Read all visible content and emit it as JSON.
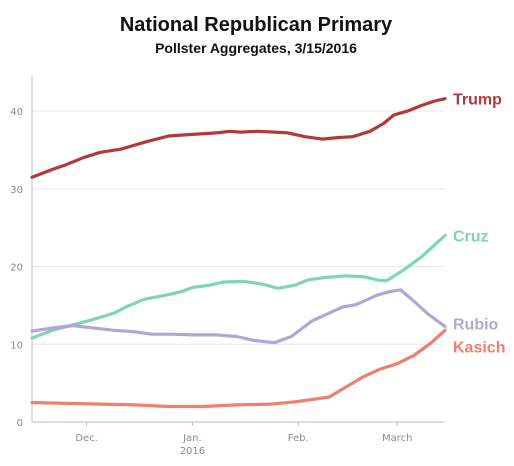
{
  "chart_data": {
    "type": "line",
    "title": "National Republican Primary",
    "subtitle": "Pollster Aggregates, 3/15/2016",
    "xlabel": "",
    "ylabel": "",
    "xlim": [
      "2015-11-15",
      "2016-03-15"
    ],
    "ylim": [
      0,
      44
    ],
    "yticks": [
      0,
      10,
      20,
      30,
      40
    ],
    "xticks": [
      {
        "date": "2015-12-01",
        "label": "Dec."
      },
      {
        "date": "2016-01-01",
        "label": "Jan.",
        "sublabel": "2016"
      },
      {
        "date": "2016-02-01",
        "label": "Feb."
      },
      {
        "date": "2016-03-01",
        "label": "March"
      }
    ],
    "grid": true,
    "legend": "direct labels at right end of lines",
    "series": [
      {
        "name": "Trump",
        "color": "#b03a3a",
        "points": [
          [
            "2015-11-15",
            31.5
          ],
          [
            "2015-11-21",
            32.5
          ],
          [
            "2015-11-25",
            33.1
          ],
          [
            "2015-11-30",
            34.0
          ],
          [
            "2015-12-05",
            34.7
          ],
          [
            "2015-12-11",
            35.1
          ],
          [
            "2015-12-18",
            36.0
          ],
          [
            "2015-12-25",
            36.8
          ],
          [
            "2016-01-01",
            37.0
          ],
          [
            "2016-01-08",
            37.2
          ],
          [
            "2016-01-12",
            37.4
          ],
          [
            "2016-01-15",
            37.3
          ],
          [
            "2016-01-20",
            37.4
          ],
          [
            "2016-01-25",
            37.3
          ],
          [
            "2016-01-29",
            37.2
          ],
          [
            "2016-02-03",
            36.7
          ],
          [
            "2016-02-08",
            36.4
          ],
          [
            "2016-02-13",
            36.6
          ],
          [
            "2016-02-17",
            36.7
          ],
          [
            "2016-02-22",
            37.4
          ],
          [
            "2016-02-26",
            38.4
          ],
          [
            "2016-02-29",
            39.5
          ],
          [
            "2016-03-04",
            40.0
          ],
          [
            "2016-03-08",
            40.7
          ],
          [
            "2016-03-12",
            41.3
          ],
          [
            "2016-03-15",
            41.6
          ]
        ]
      },
      {
        "name": "Cruz",
        "color": "#7fd3bc",
        "points": [
          [
            "2015-11-15",
            10.8
          ],
          [
            "2015-11-21",
            11.8
          ],
          [
            "2015-11-27",
            12.5
          ],
          [
            "2015-12-03",
            13.2
          ],
          [
            "2015-12-09",
            14.0
          ],
          [
            "2015-12-13",
            14.9
          ],
          [
            "2015-12-18",
            15.8
          ],
          [
            "2015-12-24",
            16.3
          ],
          [
            "2015-12-29",
            16.8
          ],
          [
            "2016-01-01",
            17.3
          ],
          [
            "2016-01-06",
            17.6
          ],
          [
            "2016-01-10",
            18.0
          ],
          [
            "2016-01-16",
            18.1
          ],
          [
            "2016-01-22",
            17.7
          ],
          [
            "2016-01-26",
            17.2
          ],
          [
            "2016-01-31",
            17.6
          ],
          [
            "2016-02-04",
            18.3
          ],
          [
            "2016-02-09",
            18.6
          ],
          [
            "2016-02-15",
            18.8
          ],
          [
            "2016-02-20",
            18.7
          ],
          [
            "2016-02-25",
            18.2
          ],
          [
            "2016-02-27",
            18.2
          ],
          [
            "2016-03-03",
            19.6
          ],
          [
            "2016-03-08",
            21.2
          ],
          [
            "2016-03-15",
            24.0
          ]
        ]
      },
      {
        "name": "Rubio",
        "color": "#b3a6d6",
        "points": [
          [
            "2015-11-15",
            11.7
          ],
          [
            "2015-11-21",
            12.1
          ],
          [
            "2015-11-27",
            12.4
          ],
          [
            "2015-12-03",
            12.1
          ],
          [
            "2015-12-09",
            11.8
          ],
          [
            "2015-12-15",
            11.6
          ],
          [
            "2015-12-20",
            11.3
          ],
          [
            "2015-12-26",
            11.3
          ],
          [
            "2016-01-01",
            11.2
          ],
          [
            "2016-01-08",
            11.2
          ],
          [
            "2016-01-14",
            11.0
          ],
          [
            "2016-01-19",
            10.5
          ],
          [
            "2016-01-25",
            10.2
          ],
          [
            "2016-01-30",
            11.0
          ],
          [
            "2016-02-05",
            13.0
          ],
          [
            "2016-02-10",
            14.0
          ],
          [
            "2016-02-14",
            14.8
          ],
          [
            "2016-02-18",
            15.1
          ],
          [
            "2016-02-24",
            16.3
          ],
          [
            "2016-02-28",
            16.8
          ],
          [
            "2016-03-02",
            17.0
          ],
          [
            "2016-03-06",
            15.5
          ],
          [
            "2016-03-10",
            13.9
          ],
          [
            "2016-03-15",
            12.3
          ]
        ]
      },
      {
        "name": "Kasich",
        "color": "#ef7f6e",
        "points": [
          [
            "2015-11-15",
            2.5
          ],
          [
            "2015-11-25",
            2.4
          ],
          [
            "2015-12-05",
            2.3
          ],
          [
            "2015-12-15",
            2.2
          ],
          [
            "2015-12-25",
            2.0
          ],
          [
            "2016-01-04",
            2.0
          ],
          [
            "2016-01-14",
            2.2
          ],
          [
            "2016-01-24",
            2.3
          ],
          [
            "2016-01-31",
            2.6
          ],
          [
            "2016-02-05",
            2.9
          ],
          [
            "2016-02-10",
            3.2
          ],
          [
            "2016-02-15",
            4.5
          ],
          [
            "2016-02-20",
            5.8
          ],
          [
            "2016-02-25",
            6.8
          ],
          [
            "2016-03-01",
            7.5
          ],
          [
            "2016-03-06",
            8.6
          ],
          [
            "2016-03-11",
            10.2
          ],
          [
            "2016-03-15",
            11.8
          ]
        ]
      }
    ]
  }
}
